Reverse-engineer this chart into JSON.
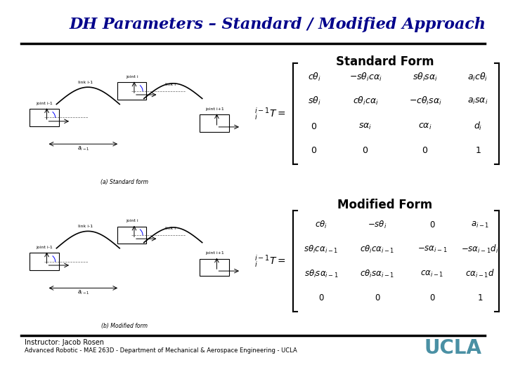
{
  "title": "DH Parameters – Standard / Modified Approach",
  "title_color": "#00008B",
  "title_fontsize": 16,
  "background_color": "#ffffff",
  "header_line_color": "#000000",
  "footer_line_color": "#000000",
  "standard_form_label": "Standard Form",
  "modified_form_label": "Modified Form",
  "footer_left_line1": "Instructor: Jacob Rosen",
  "footer_left_line2": "Advanced Robotic - MAE 263D - Department of Mechanical & Aerospace Engineering - UCLA",
  "footer_right": "UCLA",
  "footer_right_color": "#4A90A4",
  "image_standard_caption": "(a) Standard form",
  "image_modified_caption": "(b) Modified form"
}
